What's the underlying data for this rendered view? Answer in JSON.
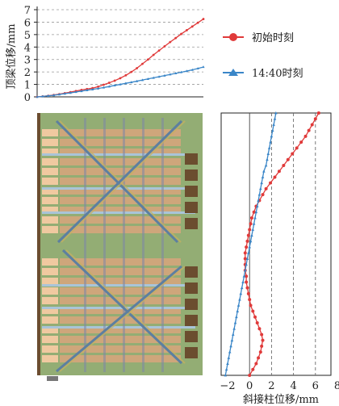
{
  "colors": {
    "initial": "#e03a3a",
    "later": "#3a86c8",
    "plan_bg": "#93ad74",
    "plan_bay": "#d8a57c",
    "plan_dark": "#6b4d2f",
    "plan_edge": "#4a4330"
  },
  "chart_data": [
    {
      "type": "line",
      "ylabel": "顶梁位移/mm",
      "ylim": [
        0,
        7
      ],
      "yticks": [
        "0",
        "1",
        "2",
        "3",
        "4",
        "5",
        "6",
        "7"
      ],
      "grid": "horizontal dashed",
      "x": [
        0,
        1,
        2,
        3,
        4,
        5,
        6,
        7,
        8,
        9,
        10,
        11,
        12,
        13,
        14,
        15,
        16,
        17,
        18,
        19,
        20,
        21,
        22,
        23,
        24,
        25,
        26,
        27,
        28,
        29,
        30
      ],
      "series": [
        {
          "name": "初始时刻",
          "values": [
            0.0,
            0.04,
            0.09,
            0.15,
            0.22,
            0.3,
            0.38,
            0.47,
            0.56,
            0.63,
            0.7,
            0.82,
            0.97,
            1.13,
            1.3,
            1.5,
            1.73,
            2.0,
            2.3,
            2.65,
            3.0,
            3.37,
            3.72,
            4.06,
            4.4,
            4.72,
            5.05,
            5.35,
            5.65,
            5.95,
            6.25
          ]
        },
        {
          "name": "14:40时刻",
          "values": [
            0.0,
            0.04,
            0.08,
            0.13,
            0.19,
            0.26,
            0.32,
            0.39,
            0.46,
            0.53,
            0.6,
            0.67,
            0.75,
            0.83,
            0.92,
            1.0,
            1.09,
            1.17,
            1.26,
            1.35,
            1.44,
            1.53,
            1.62,
            1.71,
            1.8,
            1.89,
            1.98,
            2.07,
            2.17,
            2.28,
            2.4
          ]
        }
      ]
    },
    {
      "type": "line",
      "orientation": "vertical",
      "xlabel": "斜接柱位移/mm",
      "xlim": [
        -2,
        8
      ],
      "xticks": [
        "−2",
        "0",
        "2",
        "4",
        "6",
        "8"
      ],
      "grid": "vertical dashed",
      "position": [
        0,
        1,
        2,
        3,
        4,
        5,
        6,
        7,
        8,
        9,
        10,
        11,
        12,
        13,
        14,
        15,
        16,
        17,
        18,
        19,
        20,
        21,
        22,
        23,
        24,
        25,
        26,
        27,
        28,
        29,
        30,
        31,
        32,
        33,
        34,
        35,
        36,
        37,
        38,
        39,
        40,
        41,
        42,
        43,
        44,
        45
      ],
      "series": [
        {
          "name": "初始时刻",
          "values": [
            6.3,
            6.0,
            5.7,
            5.4,
            5.1,
            4.7,
            4.3,
            3.9,
            3.5,
            3.1,
            2.7,
            2.3,
            1.9,
            1.5,
            1.2,
            0.9,
            0.6,
            0.4,
            0.2,
            0.1,
            0.0,
            -0.1,
            -0.2,
            -0.3,
            -0.4,
            -0.4,
            -0.4,
            -0.4,
            -0.3,
            -0.3,
            -0.2,
            -0.1,
            0.0,
            0.1,
            0.3,
            0.5,
            0.7,
            0.9,
            1.1,
            1.2,
            1.1,
            1.0,
            0.8,
            0.6,
            0.3,
            0.0
          ]
        },
        {
          "name": "14:40时刻",
          "values": [
            2.4,
            2.3,
            2.2,
            2.1,
            2.0,
            1.9,
            1.8,
            1.7,
            1.6,
            1.5,
            1.3,
            1.2,
            1.1,
            1.0,
            0.9,
            0.8,
            0.7,
            0.6,
            0.5,
            0.4,
            0.3,
            0.2,
            0.1,
            0.0,
            -0.1,
            -0.2,
            -0.3,
            -0.4,
            -0.5,
            -0.6,
            -0.7,
            -0.8,
            -0.9,
            -1.0,
            -1.1,
            -1.2,
            -1.3,
            -1.4,
            -1.5,
            -1.6,
            -1.7,
            -1.8,
            -1.9,
            -2.0,
            -2.1,
            -2.2
          ]
        }
      ]
    }
  ]
}
